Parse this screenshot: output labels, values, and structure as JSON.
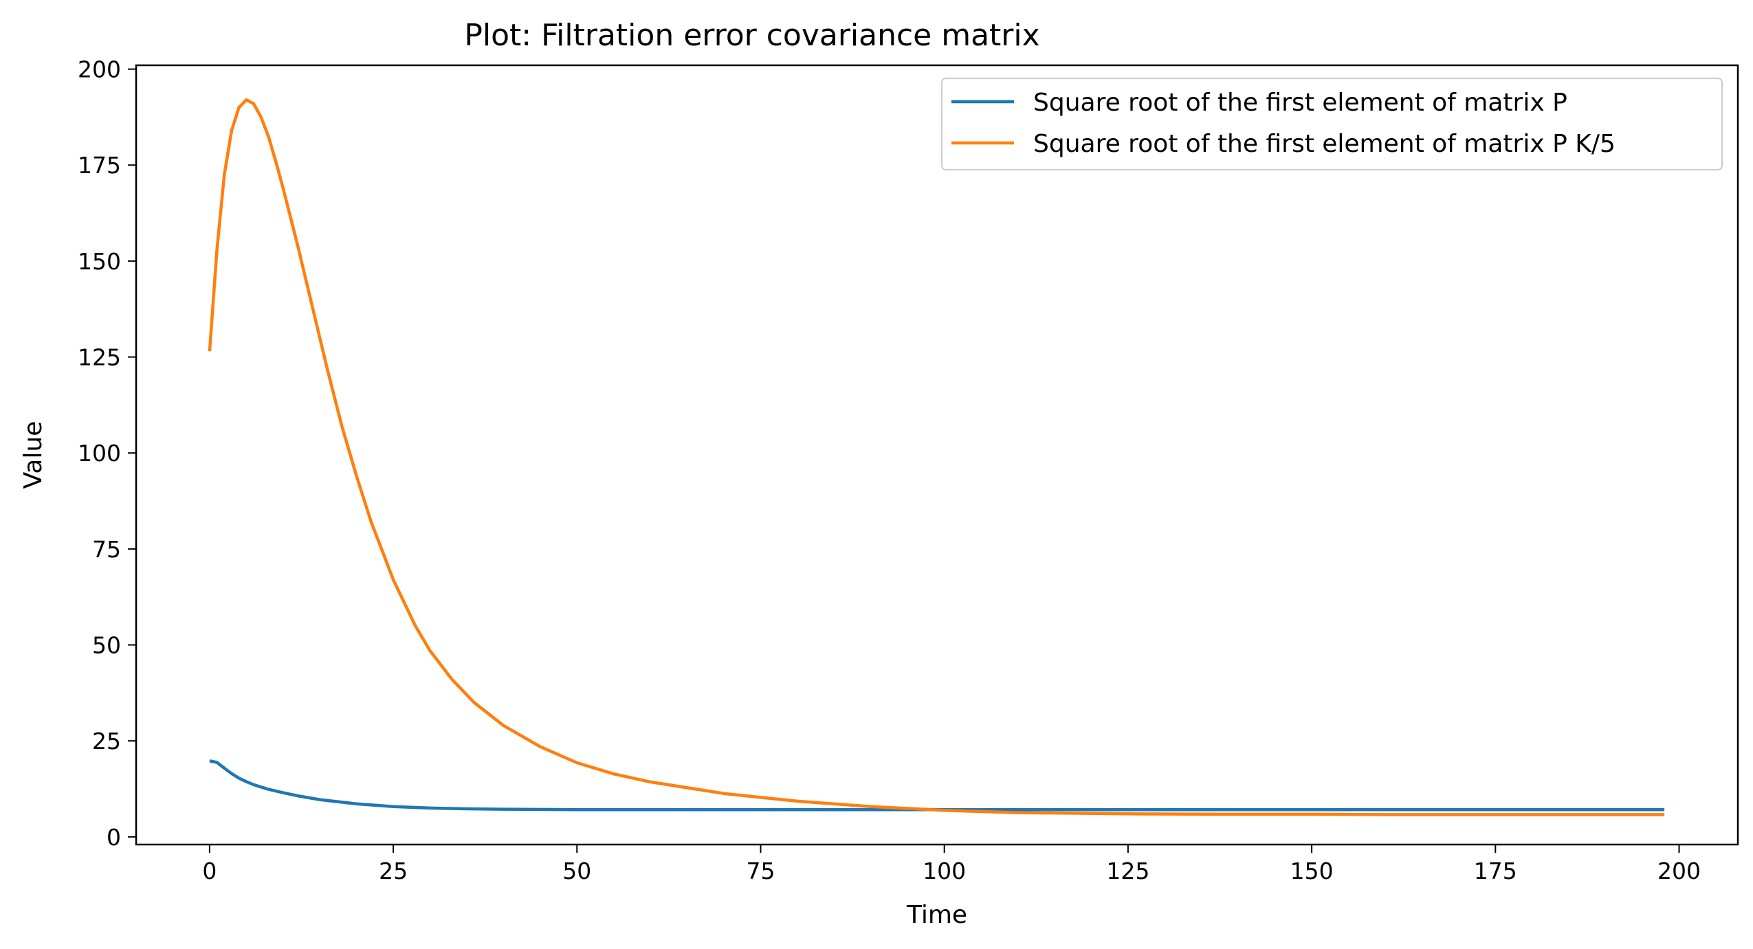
{
  "chart_data": {
    "type": "line",
    "title": "Plot: Filtration error covariance matrix",
    "xlabel": "Time",
    "ylabel": "Value",
    "xlim": [
      -10,
      208
    ],
    "ylim": [
      -2,
      201
    ],
    "xticks": [
      0,
      25,
      50,
      75,
      100,
      125,
      150,
      175,
      200
    ],
    "yticks": [
      0,
      25,
      50,
      75,
      100,
      125,
      150,
      175,
      200
    ],
    "grid": false,
    "legend_position": "upper right",
    "series": [
      {
        "name": "Square root of the first element of matrix P",
        "color": "#1f77b4",
        "x": [
          0,
          1,
          2,
          3,
          4,
          5,
          6,
          8,
          10,
          12,
          15,
          20,
          25,
          30,
          35,
          40,
          50,
          60,
          80,
          100,
          125,
          150,
          175,
          198
        ],
        "y": [
          19.8,
          19.4,
          17.9,
          16.5,
          15.3,
          14.4,
          13.6,
          12.4,
          11.5,
          10.7,
          9.7,
          8.6,
          7.9,
          7.5,
          7.3,
          7.2,
          7.1,
          7.1,
          7.1,
          7.1,
          7.1,
          7.1,
          7.1,
          7.1
        ]
      },
      {
        "name": "Square root of the first element of matrix P K/5",
        "color": "#ff7f0e",
        "x": [
          0,
          1,
          2,
          3,
          4,
          5,
          6,
          7,
          8,
          9,
          10,
          12,
          14,
          16,
          18,
          20,
          22,
          25,
          28,
          30,
          33,
          36,
          40,
          45,
          50,
          55,
          60,
          70,
          80,
          90,
          100,
          110,
          125,
          140,
          150,
          160,
          175,
          198
        ],
        "y": [
          126.5,
          153,
          172.5,
          184,
          190,
          192,
          191,
          187.5,
          182.5,
          176,
          169,
          154,
          138,
          122,
          107,
          94,
          82,
          67,
          55,
          48.5,
          41,
          35,
          29,
          23.5,
          19.3,
          16.4,
          14.3,
          11.3,
          9.3,
          7.9,
          6.9,
          6.3,
          6.0,
          5.9,
          5.9,
          5.8,
          5.8,
          5.8
        ]
      }
    ]
  }
}
